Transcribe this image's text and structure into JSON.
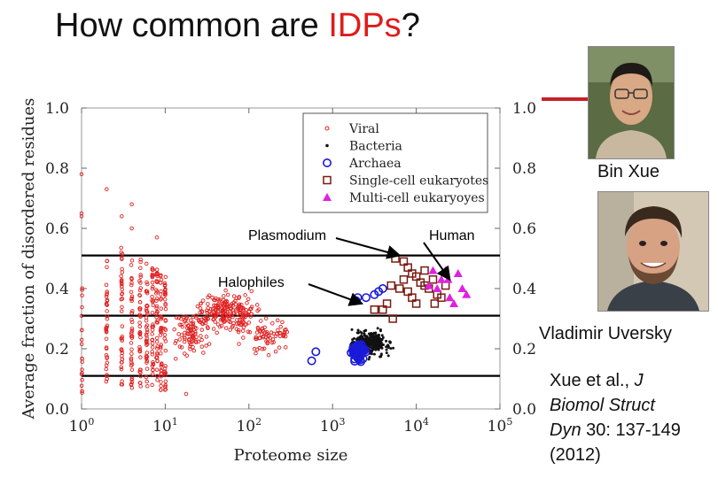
{
  "slide": {
    "title_main": "How common are ",
    "title_highlight": "IDPs",
    "title_end": "?",
    "highlight_color": "#e01b1b"
  },
  "people": {
    "bin_xue": {
      "caption": "Bin Xue",
      "photo_icon": "person-photo"
    },
    "vladimir_uversky": {
      "caption": "Vladimir Uversky",
      "photo_icon": "person-photo"
    }
  },
  "citation": {
    "authors": "Xue et al.,",
    "journal_line1": "J",
    "journal_line2": "Biomol Struct",
    "journal_line3": "Dyn",
    "volume_pages": "30: 137-149",
    "year": "(2012)"
  },
  "chart_data": {
    "type": "scatter",
    "xlabel": "Proteome size",
    "ylabel": "Average fraction of disordered residues",
    "x_scale": "log",
    "xlim": [
      0,
      5
    ],
    "ylim": [
      0.0,
      1.0
    ],
    "x_ticks": [
      {
        "base": "10",
        "exp": "0"
      },
      {
        "base": "10",
        "exp": "1"
      },
      {
        "base": "10",
        "exp": "2"
      },
      {
        "base": "10",
        "exp": "3"
      },
      {
        "base": "10",
        "exp": "4"
      },
      {
        "base": "10",
        "exp": "5"
      }
    ],
    "y_ticks": [
      "0.0",
      "0.2",
      "0.4",
      "0.6",
      "0.8",
      "1.0"
    ],
    "y_tick_values": [
      0,
      0.2,
      0.4,
      0.6,
      0.8,
      1.0
    ],
    "reference_lines": [
      0.11,
      0.31,
      0.51
    ],
    "legend_position": "top-right",
    "legend": [
      {
        "name": "Viral",
        "marker": "small-circle",
        "color": "#e02020"
      },
      {
        "name": "Bacteria",
        "marker": "dot",
        "color": "#111111"
      },
      {
        "name": "Archaea",
        "marker": "circle",
        "color": "#1a1ad8"
      },
      {
        "name": "Single-cell eukaryotes",
        "marker": "square",
        "color": "#7a1a10"
      },
      {
        "name": "Multi-cell eukaryoyes",
        "marker": "triangle",
        "color": "#e020e0"
      }
    ],
    "annotations": [
      {
        "text": "Plasmodium",
        "target": [
          3.8,
          0.51
        ]
      },
      {
        "text": "Human",
        "target": [
          4.4,
          0.43
        ]
      },
      {
        "text": "Halophiles",
        "target": [
          3.35,
          0.35
        ]
      }
    ],
    "series": [
      {
        "name": "Viral",
        "cluster": true,
        "columns": [
          [
            0,
            0.04,
            0.42
          ],
          [
            0.3,
            0.08,
            0.5
          ],
          [
            0.48,
            0.08,
            0.55
          ],
          [
            0.6,
            0.06,
            0.5
          ],
          [
            0.7,
            0.06,
            0.5
          ],
          [
            0.78,
            0.06,
            0.5
          ],
          [
            0.85,
            0.06,
            0.48
          ],
          [
            0.9,
            0.06,
            0.48
          ],
          [
            0.95,
            0.06,
            0.48
          ],
          [
            1.0,
            0.06,
            0.46
          ]
        ],
        "blobs": [
          [
            1.75,
            0.32,
            0.7,
            0.12,
            200
          ],
          [
            1.3,
            0.25,
            0.5,
            0.14,
            90
          ],
          [
            2.2,
            0.24,
            0.6,
            0.12,
            70
          ]
        ],
        "points": [
          [
            0,
            0.78
          ],
          [
            0,
            0.65
          ],
          [
            0,
            0.64
          ],
          [
            0.3,
            0.73
          ],
          [
            0.48,
            0.64
          ],
          [
            0.6,
            0.68
          ],
          [
            0.6,
            0.6
          ],
          [
            0.9,
            0.57
          ],
          [
            1.25,
            0.05
          ]
        ]
      },
      {
        "name": "Bacteria",
        "blobs": [
          [
            3.45,
            0.22,
            0.42,
            0.08,
            320
          ]
        ]
      },
      {
        "name": "Archaea",
        "blobs": [
          [
            3.3,
            0.19,
            0.18,
            0.05,
            90
          ]
        ],
        "points": [
          [
            3.3,
            0.37
          ],
          [
            3.4,
            0.37
          ],
          [
            3.5,
            0.38
          ],
          [
            3.55,
            0.39
          ],
          [
            3.6,
            0.4
          ],
          [
            3.28,
            0.36
          ],
          [
            2.75,
            0.16
          ],
          [
            2.8,
            0.19
          ]
        ]
      },
      {
        "name": "Single-cell eukaryotes",
        "points": [
          [
            3.75,
            0.5
          ],
          [
            3.85,
            0.49
          ],
          [
            3.9,
            0.47
          ],
          [
            3.95,
            0.45
          ],
          [
            4.0,
            0.44
          ],
          [
            4.05,
            0.42
          ],
          [
            4.1,
            0.41
          ],
          [
            4.15,
            0.4
          ],
          [
            4.2,
            0.43
          ],
          [
            4.25,
            0.38
          ],
          [
            3.7,
            0.41
          ],
          [
            3.8,
            0.4
          ],
          [
            3.9,
            0.39
          ],
          [
            3.95,
            0.37
          ],
          [
            4.0,
            0.35
          ],
          [
            4.3,
            0.37
          ],
          [
            4.35,
            0.41
          ],
          [
            3.6,
            0.33
          ],
          [
            3.65,
            0.35
          ],
          [
            3.85,
            0.43
          ],
          [
            4.1,
            0.46
          ],
          [
            4.22,
            0.35
          ],
          [
            3.72,
            0.3
          ],
          [
            3.5,
            0.33
          ]
        ]
      },
      {
        "name": "Multi-cell eukaryoyes",
        "points": [
          [
            4.2,
            0.46
          ],
          [
            4.35,
            0.46
          ],
          [
            4.5,
            0.45
          ],
          [
            4.55,
            0.4
          ],
          [
            4.6,
            0.38
          ],
          [
            4.4,
            0.37
          ],
          [
            4.45,
            0.35
          ],
          [
            4.25,
            0.4
          ],
          [
            4.3,
            0.43
          ],
          [
            4.15,
            0.41
          ],
          [
            4.38,
            0.43
          ]
        ]
      }
    ]
  }
}
